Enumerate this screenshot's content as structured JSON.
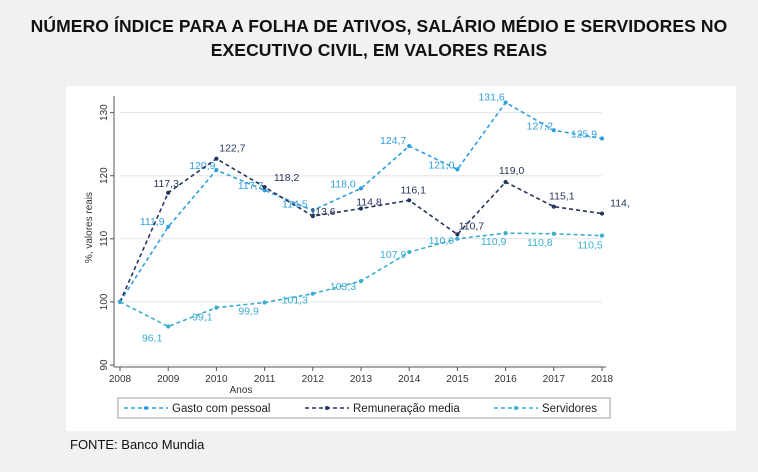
{
  "title_lines": [
    "NÚMERO ÍNDICE PARA A FOLHA DE ATIVOS, SALÁRIO MÉDIO E SERVIDORES NO",
    "EXECUTIVO CIVIL, EM VALORES REAIS"
  ],
  "source": "FONTE: Banco Mundia",
  "chart_data": {
    "type": "line",
    "xlabel": "Anos",
    "ylabel": "%, valores reais",
    "x": [
      2008,
      2009,
      2010,
      2011,
      2012,
      2013,
      2014,
      2015,
      2016,
      2017,
      2018
    ],
    "xticks": [
      "2008",
      "2009",
      "2010",
      "2011",
      "2012",
      "2013",
      "2014",
      "2015",
      "2016",
      "2017",
      "2018"
    ],
    "ylim": [
      90,
      132
    ],
    "yticks": [
      90,
      100,
      110,
      120,
      130
    ],
    "ytick_labels": [
      "90",
      "100",
      "110",
      "120",
      "130"
    ],
    "grid": true,
    "legend_position": "bottom",
    "series": [
      {
        "name": "Gasto com pessoal",
        "color": "#2f9fe0",
        "values": [
          100,
          111.9,
          120.9,
          117.7,
          114.5,
          118.0,
          124.7,
          121.0,
          131.6,
          127.2,
          125.9
        ],
        "labels": [
          "",
          "111,9",
          "120,9",
          "117,7",
          "114,5",
          "118,0",
          "124,7",
          "121,0",
          "131,6",
          "127,2",
          "125,9"
        ]
      },
      {
        "name": "Remuneração media",
        "color": "#27355c",
        "values": [
          100,
          117.3,
          122.7,
          118.2,
          113.6,
          114.8,
          116.1,
          110.7,
          119.0,
          115.1,
          114.0
        ],
        "labels": [
          "",
          "117,3",
          "122,7",
          "118,2",
          "113,6",
          "114,8",
          "116,1",
          "110,7",
          "119,0",
          "115,1",
          "114,"
        ]
      },
      {
        "name": "Servidores",
        "color": "#3aaed0",
        "values": [
          100,
          96.1,
          99.1,
          99.9,
          101.3,
          103.3,
          107.9,
          110.0,
          110.9,
          110.8,
          110.5
        ],
        "labels": [
          "",
          "96,1",
          "99,1",
          "99,9",
          "101,3",
          "103,3",
          "107,9",
          "110,0",
          "110,9",
          "110,8",
          "110,5"
        ]
      }
    ]
  }
}
